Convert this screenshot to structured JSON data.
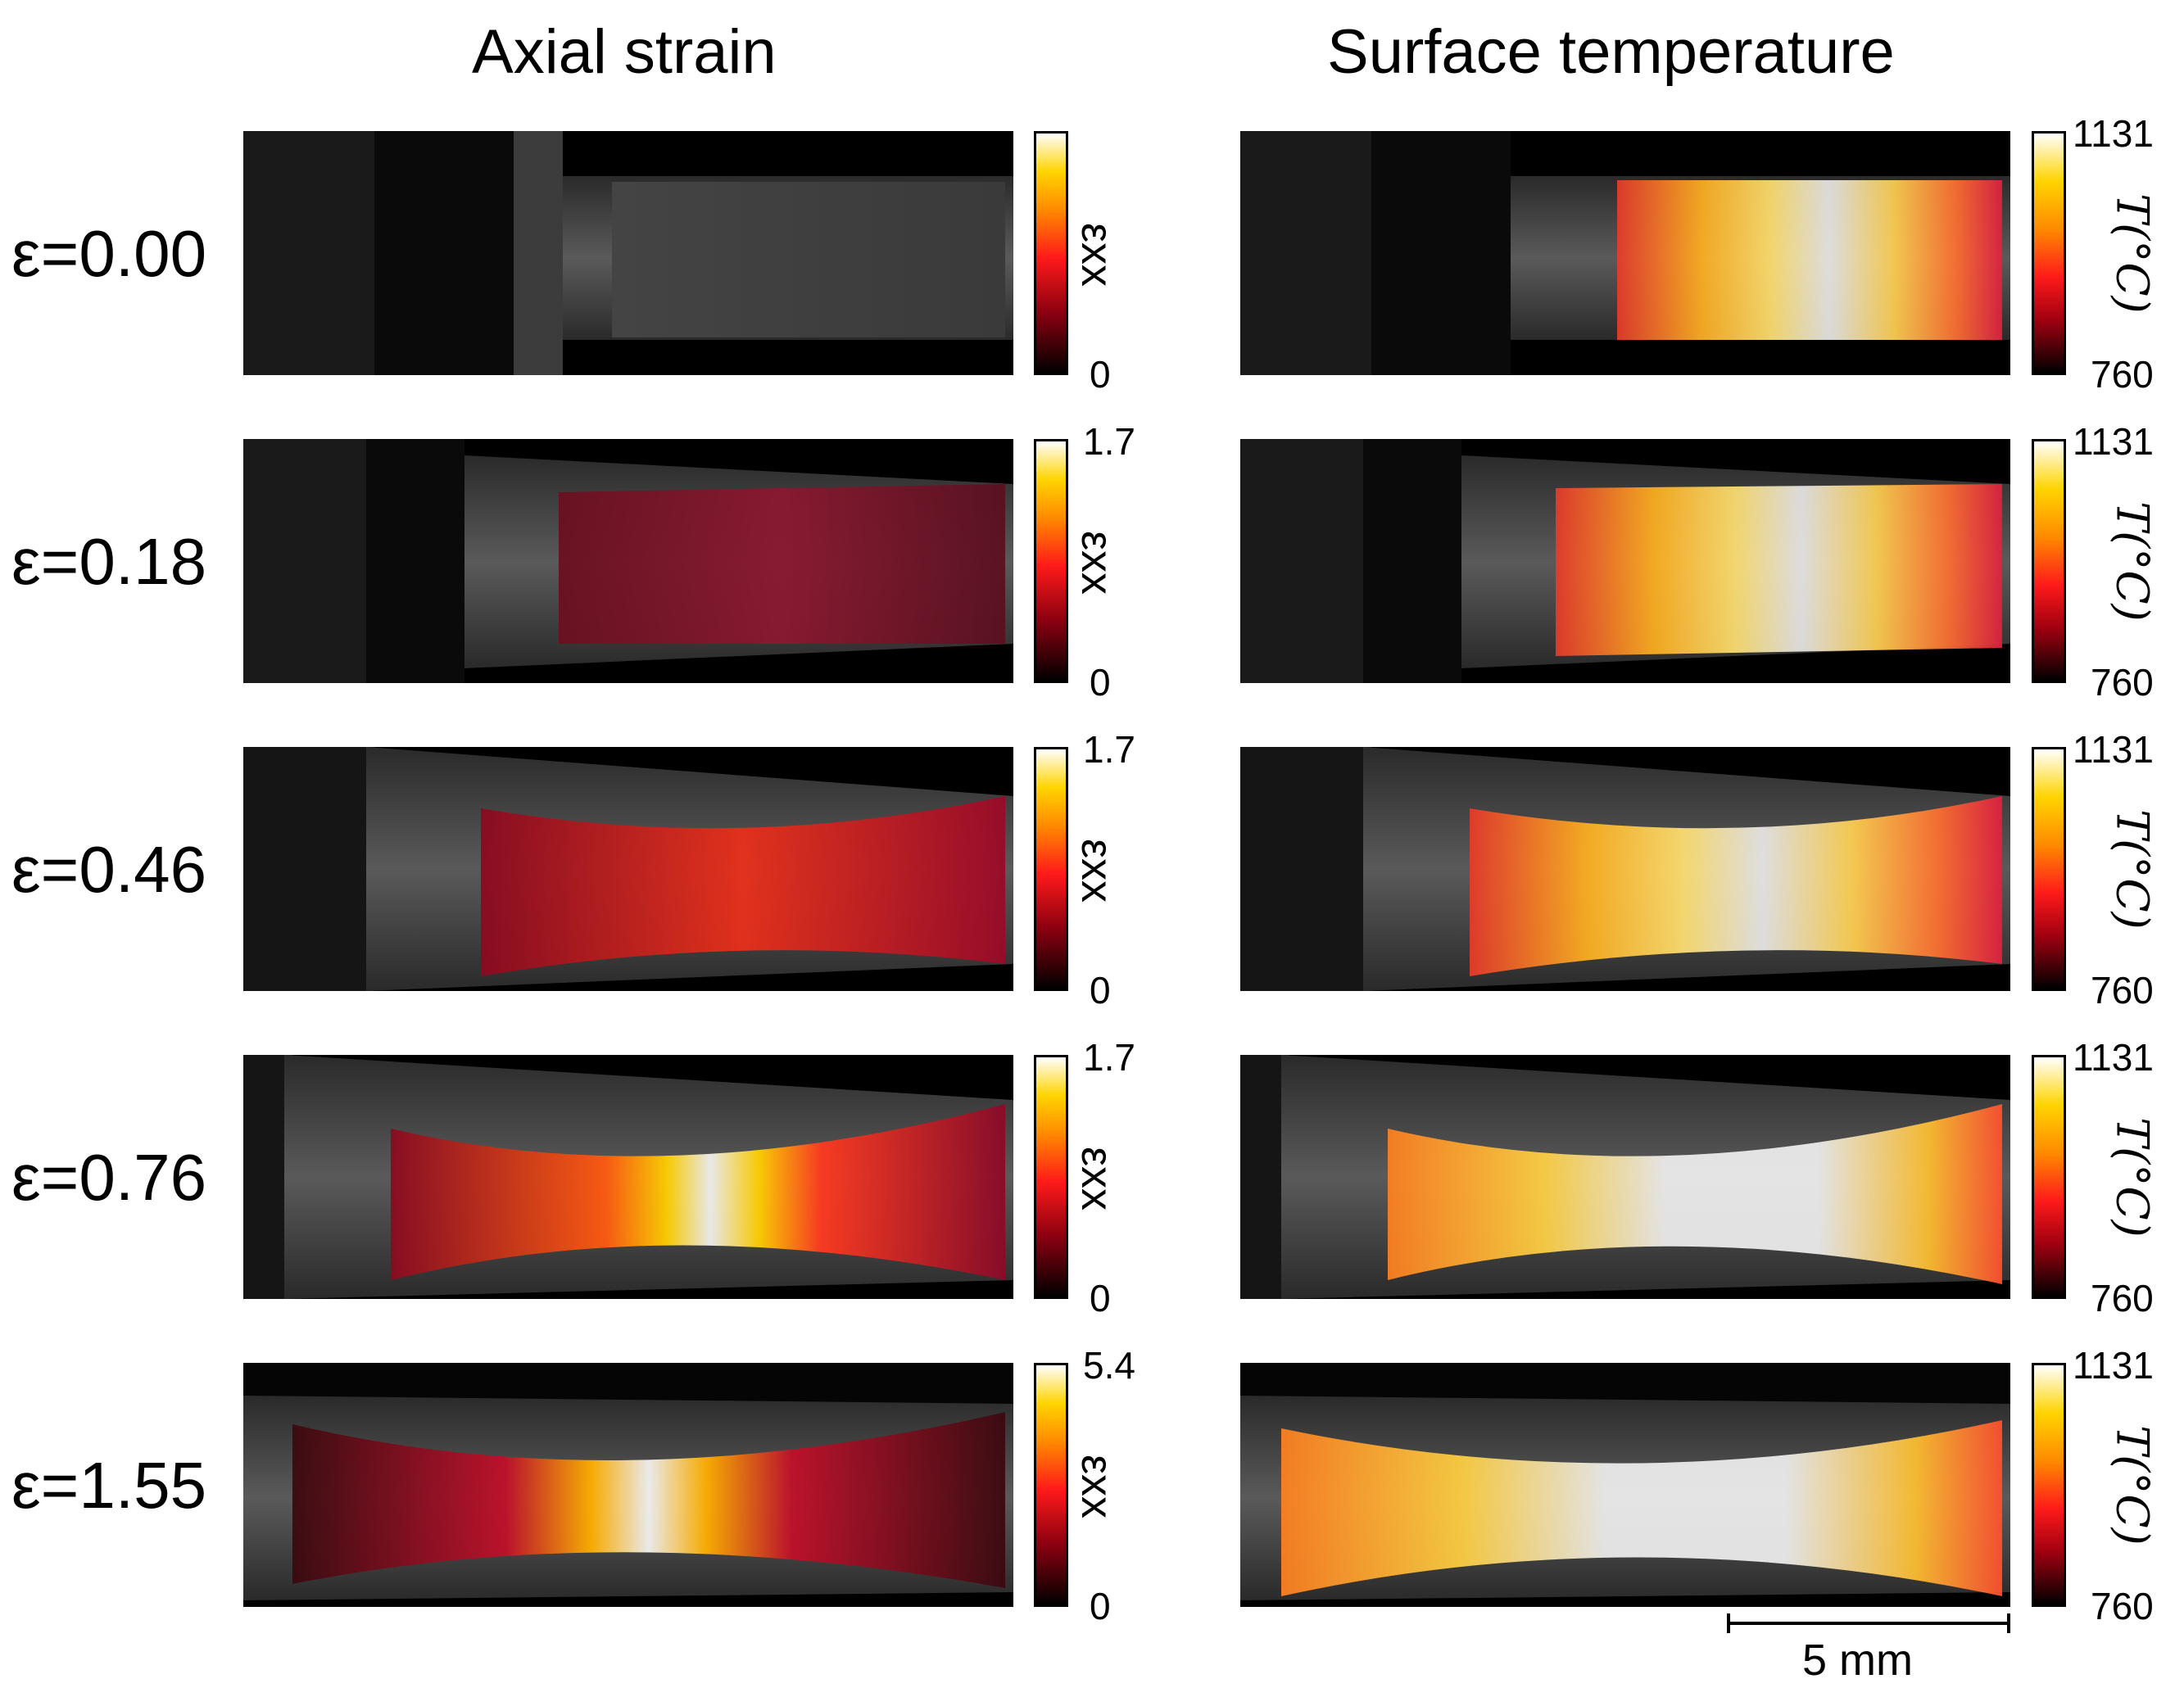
{
  "titles": {
    "left": "Axial strain",
    "right": "Surface temperature"
  },
  "rows": [
    {
      "label": "ε=0.00",
      "strain_max": "",
      "strain_min": "0",
      "temp_max": "1131",
      "temp_min": "760"
    },
    {
      "label": "ε=0.18",
      "strain_max": "1.7",
      "strain_min": "0",
      "temp_max": "1131",
      "temp_min": "760"
    },
    {
      "label": "ε=0.46",
      "strain_max": "1.7",
      "strain_min": "0",
      "temp_max": "1131",
      "temp_min": "760"
    },
    {
      "label": "ε=0.76",
      "strain_max": "1.7",
      "strain_min": "0",
      "temp_max": "1131",
      "temp_min": "760"
    },
    {
      "label": "ε=1.55",
      "strain_max": "5.4",
      "strain_min": "0",
      "temp_max": "1131",
      "temp_min": "760"
    }
  ],
  "colorbar_labels": {
    "strain": "εxx",
    "temp": "T(°C)"
  },
  "scale_bar": {
    "label": "5 mm"
  },
  "colors": {
    "dark": "#000000",
    "red": "#ff1a1a",
    "orange": "#ff8a00",
    "yellow": "#ffd400",
    "white": "#ffffff"
  }
}
